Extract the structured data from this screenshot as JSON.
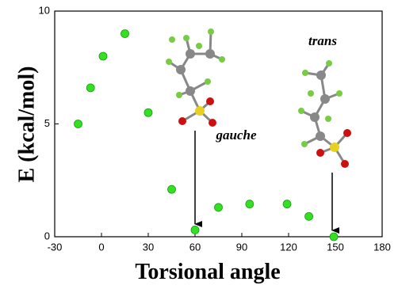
{
  "chart_data": {
    "type": "scatter",
    "xlabel": "Torsional angle",
    "ylabel": "E (kcal/mol)",
    "x": [
      -15,
      -7,
      1,
      15,
      30,
      45,
      60,
      75,
      95,
      119,
      133,
      149
    ],
    "values": [
      5.0,
      6.6,
      8.0,
      9.0,
      5.5,
      2.1,
      0.3,
      1.3,
      1.45,
      1.45,
      0.9,
      0
    ],
    "color": "#33e022",
    "xlim": [
      -30,
      180
    ],
    "xticks": [
      -30,
      0,
      30,
      60,
      90,
      120,
      150,
      180
    ],
    "ylim": [
      0,
      10
    ],
    "yticks": [
      0,
      5,
      10
    ],
    "annotations": [
      "gauche",
      "trans"
    ]
  }
}
